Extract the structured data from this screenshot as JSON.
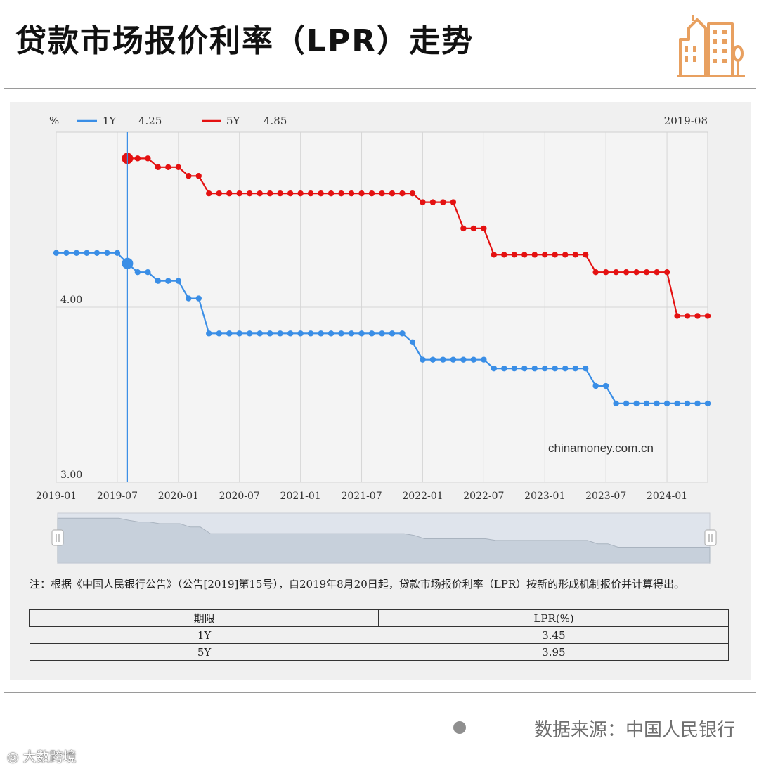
{
  "page_title": "贷款市场报价利率（LPR）走势",
  "chart_data": {
    "type": "line",
    "unit": "%",
    "tooltip_date": "2019-08",
    "x": [
      "2019-01",
      "2019-02",
      "2019-03",
      "2019-04",
      "2019-05",
      "2019-06",
      "2019-07",
      "2019-08",
      "2019-09",
      "2019-10",
      "2019-11",
      "2019-12",
      "2020-01",
      "2020-02",
      "2020-03",
      "2020-04",
      "2020-05",
      "2020-06",
      "2020-07",
      "2020-08",
      "2020-09",
      "2020-10",
      "2020-11",
      "2020-12",
      "2021-01",
      "2021-02",
      "2021-03",
      "2021-04",
      "2021-05",
      "2021-06",
      "2021-07",
      "2021-08",
      "2021-09",
      "2021-10",
      "2021-11",
      "2021-12",
      "2022-01",
      "2022-02",
      "2022-03",
      "2022-04",
      "2022-05",
      "2022-06",
      "2022-07",
      "2022-08",
      "2022-09",
      "2022-10",
      "2022-11",
      "2022-12",
      "2023-01",
      "2023-02",
      "2023-03",
      "2023-04",
      "2023-05",
      "2023-06",
      "2023-07",
      "2023-08",
      "2023-09",
      "2023-10",
      "2023-11",
      "2023-12",
      "2024-01",
      "2024-02",
      "2024-03",
      "2024-04",
      "2024-05"
    ],
    "series": [
      {
        "name": "1Y",
        "color": "#3a8ee6",
        "current_value": "4.25",
        "values": [
          4.31,
          4.31,
          4.31,
          4.31,
          4.31,
          4.31,
          4.31,
          4.25,
          4.2,
          4.2,
          4.15,
          4.15,
          4.15,
          4.05,
          4.05,
          3.85,
          3.85,
          3.85,
          3.85,
          3.85,
          3.85,
          3.85,
          3.85,
          3.85,
          3.85,
          3.85,
          3.85,
          3.85,
          3.85,
          3.85,
          3.85,
          3.85,
          3.85,
          3.85,
          3.85,
          3.8,
          3.7,
          3.7,
          3.7,
          3.7,
          3.7,
          3.7,
          3.7,
          3.65,
          3.65,
          3.65,
          3.65,
          3.65,
          3.65,
          3.65,
          3.65,
          3.65,
          3.65,
          3.55,
          3.55,
          3.45,
          3.45,
          3.45,
          3.45,
          3.45,
          3.45,
          3.45,
          3.45,
          3.45,
          3.45
        ]
      },
      {
        "name": "5Y",
        "color": "#e41111",
        "current_value": "4.85",
        "values": [
          null,
          null,
          null,
          null,
          null,
          null,
          null,
          4.85,
          4.85,
          4.85,
          4.8,
          4.8,
          4.8,
          4.75,
          4.75,
          4.65,
          4.65,
          4.65,
          4.65,
          4.65,
          4.65,
          4.65,
          4.65,
          4.65,
          4.65,
          4.65,
          4.65,
          4.65,
          4.65,
          4.65,
          4.65,
          4.65,
          4.65,
          4.65,
          4.65,
          4.65,
          4.6,
          4.6,
          4.6,
          4.6,
          4.45,
          4.45,
          4.45,
          4.3,
          4.3,
          4.3,
          4.3,
          4.3,
          4.3,
          4.3,
          4.3,
          4.3,
          4.3,
          4.2,
          4.2,
          4.2,
          4.2,
          4.2,
          4.2,
          4.2,
          4.2,
          3.95,
          3.95,
          3.95,
          3.95
        ]
      }
    ],
    "x_ticks": [
      "2019-01",
      "2019-07",
      "2020-01",
      "2020-07",
      "2021-01",
      "2021-07",
      "2022-01",
      "2022-07",
      "2023-01",
      "2023-07",
      "2024-01"
    ],
    "y_ticks": [
      "3.00",
      "4.00"
    ],
    "ylim": [
      3.0,
      5.0
    ],
    "watermark": "chinamoney.com.cn",
    "grid": true,
    "legend_position": "top-left",
    "range_slider": true
  },
  "note": "注：根据《中国人民银行公告》（公告[2019]第15号），自2019年8月20日起，贷款市场报价利率（LPR）按新的形成机制报价并计算得出。",
  "table": {
    "headers": [
      "期限",
      "LPR(%)"
    ],
    "rows": [
      [
        "1Y",
        "3.45"
      ],
      [
        "5Y",
        "3.95"
      ]
    ]
  },
  "source": "数据来源：中国人民银行",
  "weibo_watermark": "大数跨境",
  "logo_icon": "city-buildings-icon",
  "logo_color": "#e8a060"
}
